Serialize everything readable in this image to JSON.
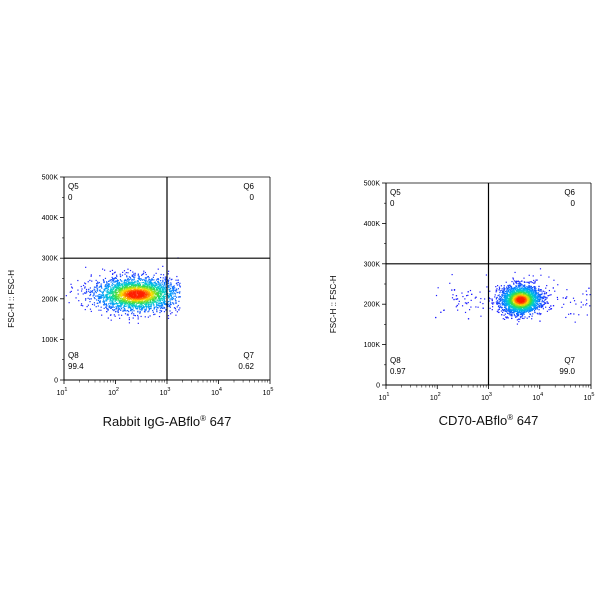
{
  "chart_data": [
    {
      "type": "scatter",
      "subtype": "flow-cytometry-density-plot",
      "xlabel": "Rabbit IgG-ABflo® 647",
      "xlabel_main": "Rabbit IgG-ABflo",
      "xlabel_sup": "®",
      "xlabel_tail": " 647",
      "ylabel": "FSC-H :: FSC-H",
      "x_scale": "log",
      "x_ticks": [
        "10^1",
        "10^2",
        "10^3",
        "10^4",
        "10^5"
      ],
      "x_tick_base": "10",
      "x_tick_exps": [
        "1",
        "2",
        "3",
        "4",
        "5"
      ],
      "xlim": [
        1,
        5
      ],
      "y_ticks": [
        "0",
        "100K",
        "200K",
        "300K",
        "400K",
        "500K"
      ],
      "y_tick_values": [
        0,
        100000,
        200000,
        300000,
        400000,
        500000
      ],
      "ylim": [
        0,
        500000
      ],
      "gate": {
        "x": 3.0,
        "y": 300000
      },
      "quadrants": [
        {
          "name": "Q5",
          "value": "0",
          "position": "top-left"
        },
        {
          "name": "Q6",
          "value": "0",
          "position": "top-right"
        },
        {
          "name": "Q8",
          "value": "99.4",
          "position": "bottom-left"
        },
        {
          "name": "Q7",
          "value": "0.62",
          "position": "bottom-right"
        }
      ],
      "population": {
        "x_center": 2.4,
        "x_spread": 0.42,
        "y_center": 212000,
        "y_spread": 21000,
        "x_min": 1.0,
        "x_max": 3.25
      },
      "grid": false
    },
    {
      "type": "scatter",
      "subtype": "flow-cytometry-density-plot",
      "xlabel": "CD70-ABflo® 647",
      "xlabel_main": "CD70-ABflo",
      "xlabel_sup": "®",
      "xlabel_tail": " 647",
      "ylabel": "FSC-H :: FSC-H",
      "x_scale": "log",
      "x_ticks": [
        "10^1",
        "10^2",
        "10^3",
        "10^4",
        "10^5"
      ],
      "x_tick_base": "10",
      "x_tick_exps": [
        "1",
        "2",
        "3",
        "4",
        "5"
      ],
      "xlim": [
        1,
        5
      ],
      "y_ticks": [
        "0",
        "100K",
        "200K",
        "300K",
        "400K",
        "500K"
      ],
      "y_tick_values": [
        0,
        100000,
        200000,
        300000,
        400000,
        500000
      ],
      "ylim": [
        0,
        500000
      ],
      "gate": {
        "x": 3.0,
        "y": 300000
      },
      "quadrants": [
        {
          "name": "Q5",
          "value": "0",
          "position": "top-left"
        },
        {
          "name": "Q6",
          "value": "0",
          "position": "top-right"
        },
        {
          "name": "Q8",
          "value": "0.97",
          "position": "bottom-left"
        },
        {
          "name": "Q7",
          "value": "99.0",
          "position": "bottom-right"
        }
      ],
      "population": {
        "x_center": 3.62,
        "x_spread": 0.2,
        "y_center": 212000,
        "y_spread": 18000,
        "x_min": 1.9,
        "x_max": 5.0
      },
      "grid": false
    }
  ],
  "colors": {
    "density_low": "#1a1aff",
    "density_mid": "#00d0d0",
    "density_high": "#ffe000",
    "density_peak": "#ff2000",
    "axis": "#000000"
  }
}
